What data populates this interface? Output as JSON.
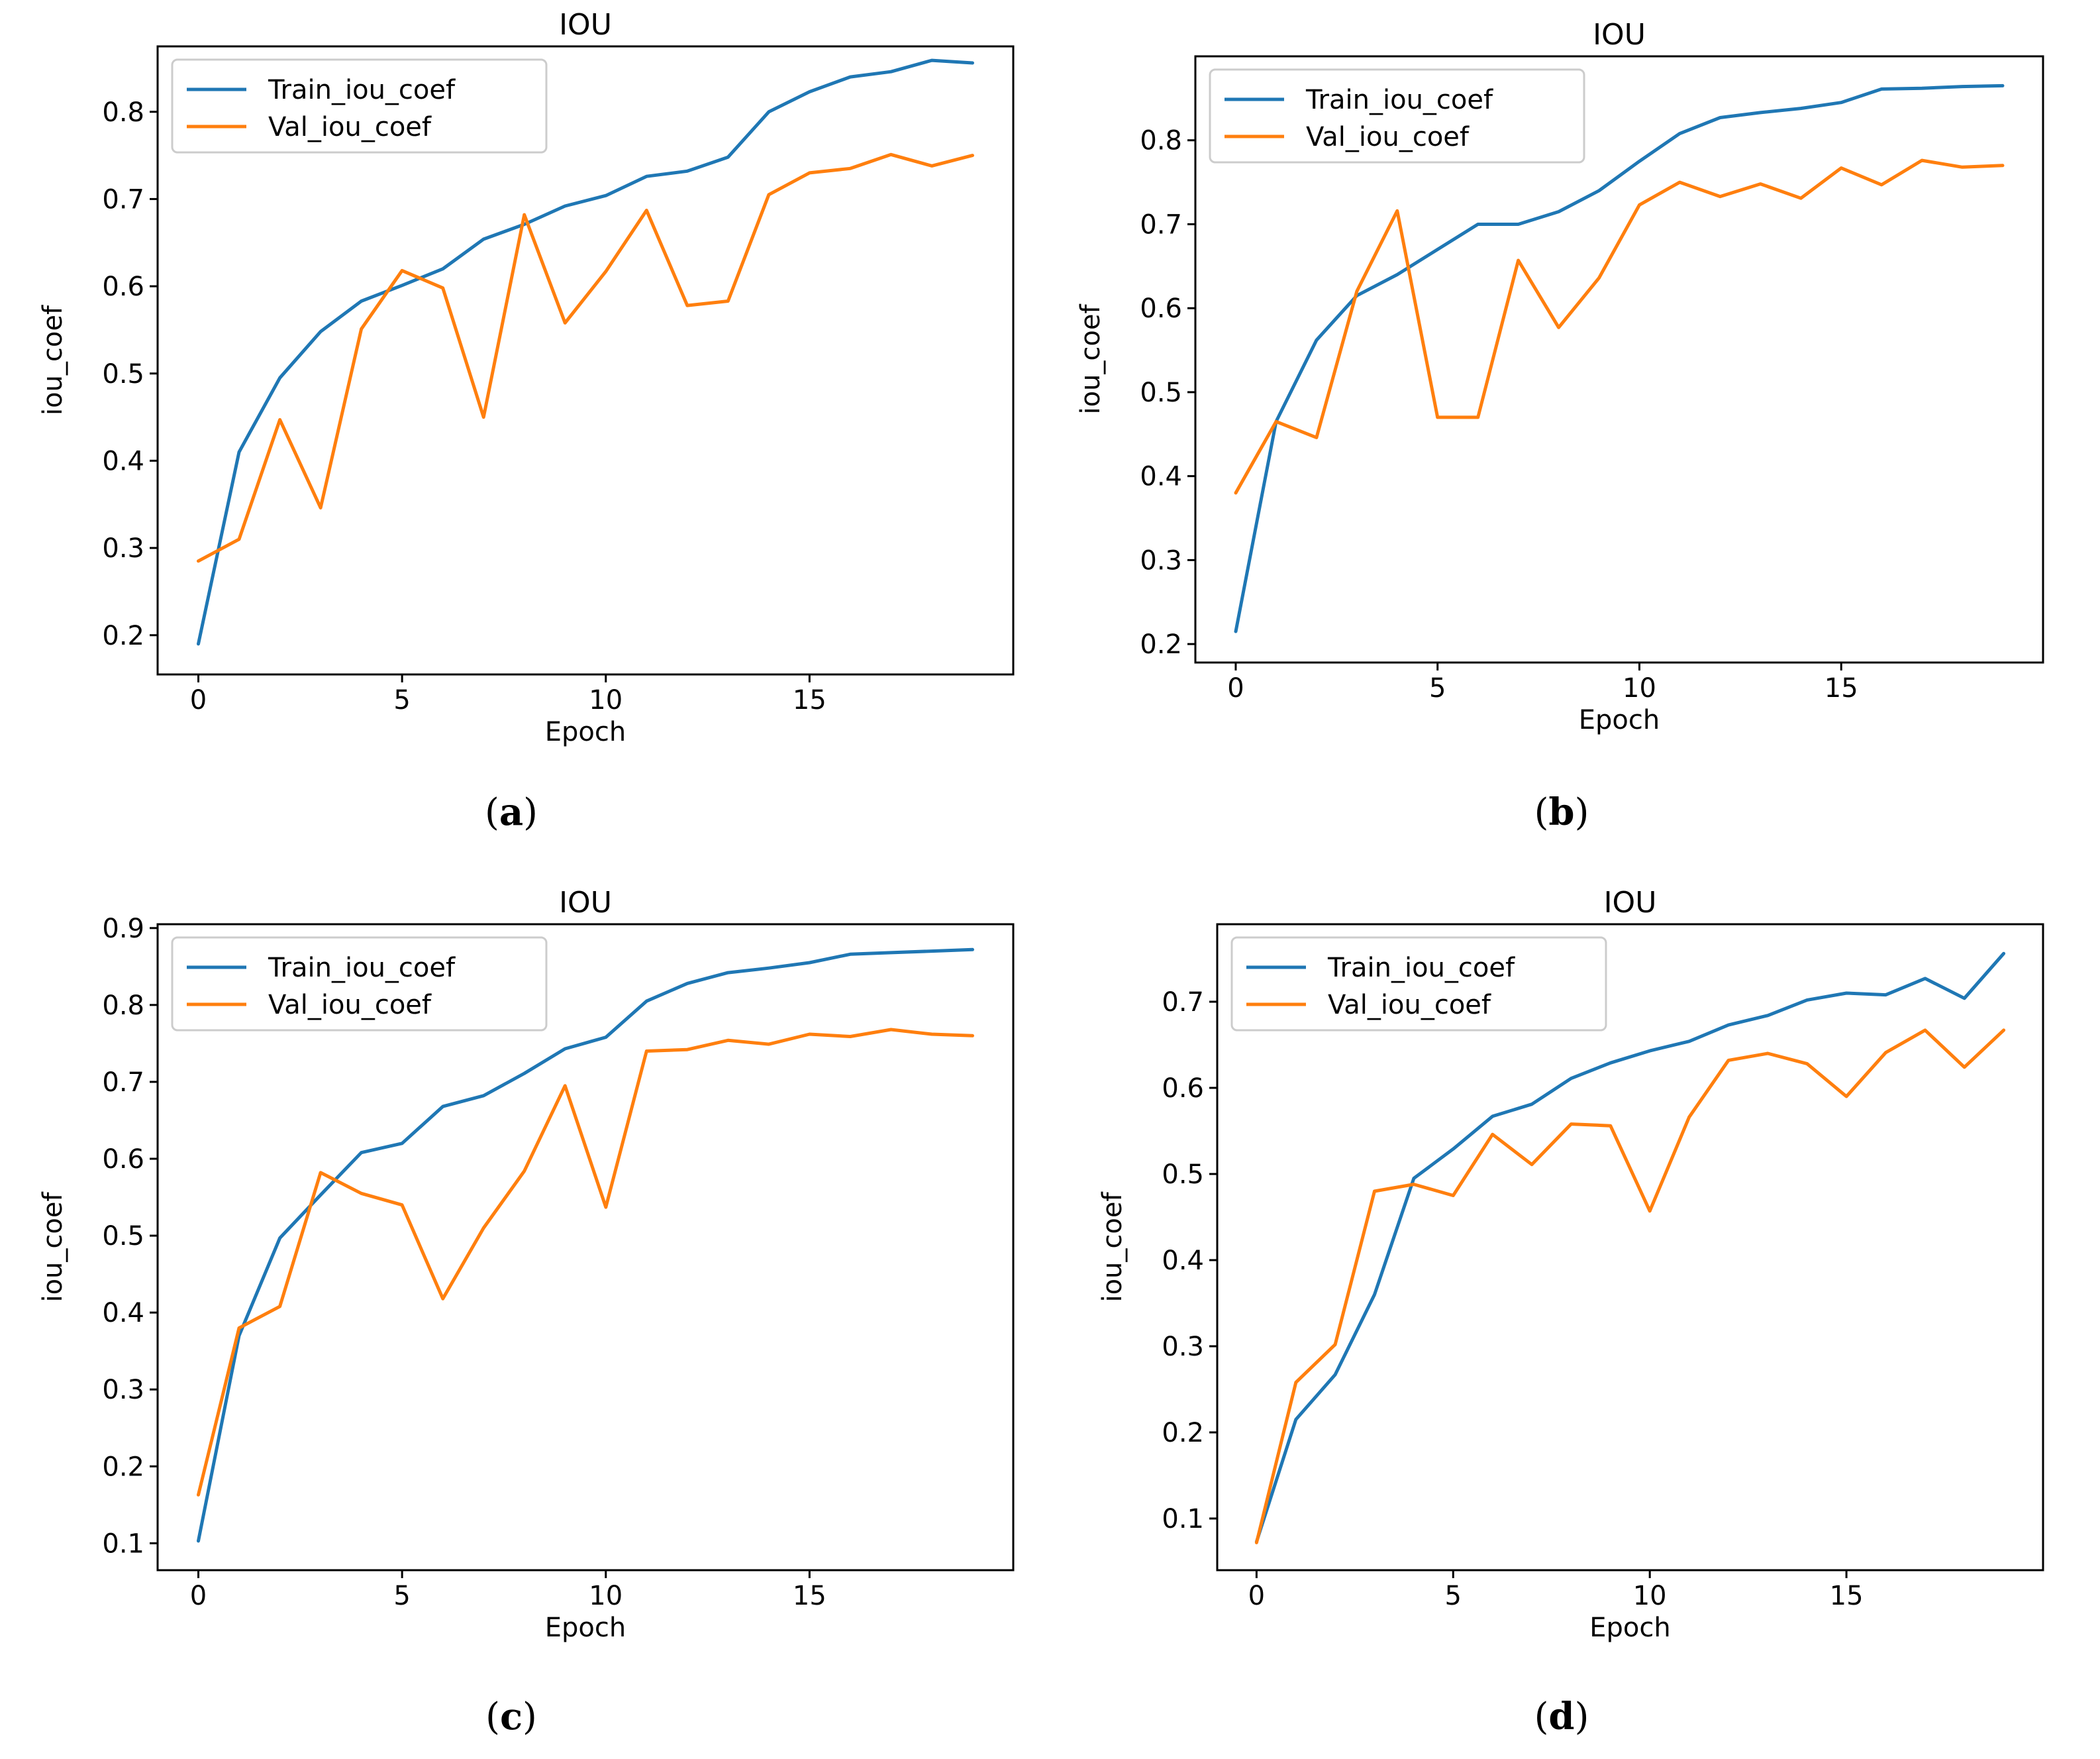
{
  "chart_data": [
    {
      "type": "line",
      "panel": "a",
      "caption_letter": "a",
      "title": "IOU",
      "xlabel": "Epoch",
      "ylabel": "iou_coef",
      "xlim": [
        -1,
        20
      ],
      "ylim": [
        0.155,
        0.875
      ],
      "xticks": [
        0,
        5,
        10,
        15
      ],
      "yticks": [
        0.2,
        0.3,
        0.4,
        0.5,
        0.6,
        0.7,
        0.8
      ],
      "legend_position": "top-left",
      "x": [
        0,
        1,
        2,
        3,
        4,
        5,
        6,
        7,
        8,
        9,
        10,
        11,
        12,
        13,
        14,
        15,
        16,
        17,
        18,
        19
      ],
      "series": [
        {
          "name": "Train_iou_coef",
          "color": "#1f77b4",
          "values": [
            0.19,
            0.41,
            0.495,
            0.548,
            0.583,
            0.601,
            0.62,
            0.654,
            0.671,
            0.692,
            0.704,
            0.726,
            0.732,
            0.748,
            0.8,
            0.823,
            0.84,
            0.846,
            0.859,
            0.856
          ]
        },
        {
          "name": "Val_iou_coef",
          "color": "#ff7f0e",
          "values": [
            0.285,
            0.31,
            0.447,
            0.346,
            0.551,
            0.618,
            0.598,
            0.45,
            0.682,
            0.558,
            0.617,
            0.687,
            0.578,
            0.583,
            0.705,
            0.73,
            0.735,
            0.751,
            0.738,
            0.75
          ]
        }
      ]
    },
    {
      "type": "line",
      "panel": "b",
      "caption_letter": "b",
      "title": "IOU",
      "xlabel": "Epoch",
      "ylabel": "iou_coef",
      "xlim": [
        -1,
        20
      ],
      "ylim": [
        0.178,
        0.9
      ],
      "xticks": [
        0,
        5,
        10,
        15
      ],
      "yticks": [
        0.2,
        0.3,
        0.4,
        0.5,
        0.6,
        0.7,
        0.8
      ],
      "legend_position": "top-left",
      "x": [
        0,
        1,
        2,
        3,
        4,
        5,
        6,
        7,
        8,
        9,
        10,
        11,
        12,
        13,
        14,
        15,
        16,
        17,
        18,
        19
      ],
      "series": [
        {
          "name": "Train_iou_coef",
          "color": "#1f77b4",
          "values": [
            0.215,
            0.465,
            0.562,
            0.615,
            0.64,
            0.67,
            0.7,
            0.7,
            0.715,
            0.74,
            0.775,
            0.808,
            0.827,
            0.833,
            0.838,
            0.845,
            0.861,
            0.862,
            0.864,
            0.865
          ]
        },
        {
          "name": "Val_iou_coef",
          "color": "#ff7f0e",
          "values": [
            0.38,
            0.465,
            0.446,
            0.62,
            0.716,
            0.47,
            0.47,
            0.657,
            0.577,
            0.636,
            0.723,
            0.75,
            0.733,
            0.748,
            0.731,
            0.767,
            0.747,
            0.776,
            0.768,
            0.77
          ]
        }
      ]
    },
    {
      "type": "line",
      "panel": "c",
      "caption_letter": "c",
      "title": "IOU",
      "xlabel": "Epoch",
      "ylabel": "iou_coef",
      "xlim": [
        -1,
        20
      ],
      "ylim": [
        0.065,
        0.905
      ],
      "xticks": [
        0,
        5,
        10,
        15
      ],
      "yticks": [
        0.1,
        0.2,
        0.3,
        0.4,
        0.5,
        0.6,
        0.7,
        0.8,
        0.9
      ],
      "legend_position": "top-left",
      "x": [
        0,
        1,
        2,
        3,
        4,
        5,
        6,
        7,
        8,
        9,
        10,
        11,
        12,
        13,
        14,
        15,
        16,
        17,
        18,
        19
      ],
      "series": [
        {
          "name": "Train_iou_coef",
          "color": "#1f77b4",
          "values": [
            0.103,
            0.37,
            0.497,
            0.553,
            0.608,
            0.62,
            0.668,
            0.682,
            0.711,
            0.743,
            0.758,
            0.805,
            0.828,
            0.842,
            0.848,
            0.855,
            0.866,
            0.868,
            0.87,
            0.872
          ]
        },
        {
          "name": "Val_iou_coef",
          "color": "#ff7f0e",
          "values": [
            0.163,
            0.38,
            0.408,
            0.582,
            0.555,
            0.54,
            0.418,
            0.51,
            0.584,
            0.695,
            0.537,
            0.74,
            0.742,
            0.754,
            0.749,
            0.762,
            0.759,
            0.768,
            0.762,
            0.76
          ]
        }
      ]
    },
    {
      "type": "line",
      "panel": "d",
      "caption_letter": "d",
      "title": "IOU",
      "xlabel": "Epoch",
      "ylabel": "iou_coef",
      "xlim": [
        -1,
        20
      ],
      "ylim": [
        0.04,
        0.79
      ],
      "xticks": [
        0,
        5,
        10,
        15
      ],
      "yticks": [
        0.1,
        0.2,
        0.3,
        0.4,
        0.5,
        0.6,
        0.7
      ],
      "legend_position": "top-left",
      "x": [
        0,
        1,
        2,
        3,
        4,
        5,
        6,
        7,
        8,
        9,
        10,
        11,
        12,
        13,
        14,
        15,
        16,
        17,
        18,
        19
      ],
      "series": [
        {
          "name": "Train_iou_coef",
          "color": "#1f77b4",
          "values": [
            0.073,
            0.215,
            0.267,
            0.36,
            0.495,
            0.529,
            0.567,
            0.581,
            0.611,
            0.629,
            0.643,
            0.654,
            0.673,
            0.684,
            0.702,
            0.71,
            0.708,
            0.727,
            0.704,
            0.756
          ]
        },
        {
          "name": "Val_iou_coef",
          "color": "#ff7f0e",
          "values": [
            0.072,
            0.258,
            0.302,
            0.48,
            0.488,
            0.475,
            0.546,
            0.511,
            0.558,
            0.556,
            0.457,
            0.566,
            0.632,
            0.64,
            0.628,
            0.59,
            0.641,
            0.667,
            0.624,
            0.667
          ]
        }
      ]
    }
  ]
}
